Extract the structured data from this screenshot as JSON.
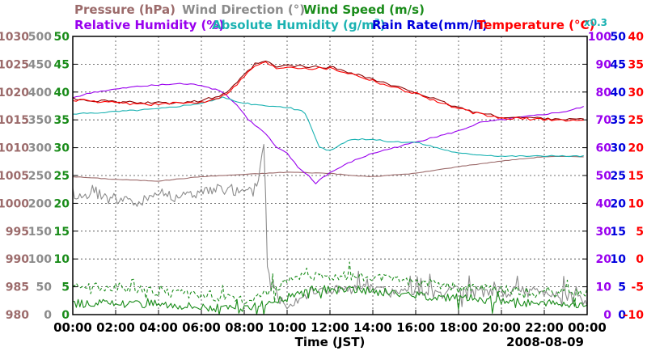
{
  "header": {
    "pressure": "Pressure (hPa)",
    "wind_direction": "Wind Direction (°)",
    "wind_speed": "Wind Speed (m/s)",
    "relative_humidity": "Relative Humidity (%)",
    "absolute_humidity": "Absolute Humidity (g/m",
    "absolute_humidity_sup": "3",
    "absolute_humidity_close": ")",
    "rain_rate": "Rain Rate(mm/h)",
    "temperature": "Temperature (°C)",
    "scale_note": "x0.3"
  },
  "footer": {
    "xlabel": "Time (JST)",
    "date": "2008-08-09"
  },
  "colors": {
    "pressure": "#9c6b6b",
    "wind_direction": "#8c8c8c",
    "wind_speed": "#1a8c1a",
    "relative_humidity": "#9900ee",
    "absolute_humidity": "#1ab2b2",
    "rain_rate": "#0000dd",
    "temperature": "#ff0000",
    "temperature_dark": "#880000",
    "grid": "#444444"
  },
  "chart_data": {
    "type": "line",
    "grid": true,
    "xlim_hours": [
      0,
      24
    ],
    "x_ticks": [
      "00:00",
      "02:00",
      "04:00",
      "06:00",
      "08:00",
      "10:00",
      "12:00",
      "14:00",
      "16:00",
      "18:00",
      "20:00",
      "22:00",
      "00:00"
    ],
    "axes": {
      "pressure": {
        "side": "left",
        "range": [
          980,
          1030
        ],
        "ticks": [
          "980",
          "985",
          "990",
          "995",
          "1000",
          "1005",
          "1010",
          "1015",
          "1020",
          "1025",
          "1030"
        ]
      },
      "wind_direction": {
        "side": "left",
        "range": [
          0,
          500
        ],
        "ticks": [
          "0",
          "50",
          "100",
          "150",
          "200",
          "250",
          "300",
          "350",
          "400",
          "450",
          "500"
        ]
      },
      "wind_speed": {
        "side": "left",
        "range": [
          0,
          50
        ],
        "ticks": [
          "0",
          "5",
          "10",
          "15",
          "20",
          "25",
          "30",
          "35",
          "40",
          "45",
          "50"
        ]
      },
      "relative_humidity": {
        "side": "right",
        "range": [
          0,
          100
        ],
        "ticks": [
          "0",
          "10",
          "20",
          "30",
          "40",
          "50",
          "60",
          "70",
          "80",
          "90",
          "100"
        ]
      },
      "rain_rate": {
        "side": "right",
        "range": [
          0,
          50
        ],
        "ticks": [
          "0",
          "5",
          "10",
          "15",
          "20",
          "25",
          "30",
          "35",
          "40",
          "45",
          "50"
        ]
      },
      "temperature": {
        "side": "right",
        "range": [
          -10,
          40
        ],
        "ticks": [
          "-10",
          "-5",
          "0",
          "5",
          "10",
          "15",
          "20",
          "25",
          "30",
          "35",
          "40"
        ]
      }
    },
    "series": [
      {
        "name": "Pressure (hPa)",
        "axis": "pressure",
        "points": [
          [
            0,
            1004.8
          ],
          [
            2,
            1004.3
          ],
          [
            4,
            1004.0
          ],
          [
            5,
            1004.4
          ],
          [
            6,
            1004.8
          ],
          [
            8,
            1005.2
          ],
          [
            10,
            1005.6
          ],
          [
            12,
            1005.4
          ],
          [
            13,
            1005.0
          ],
          [
            14,
            1004.8
          ],
          [
            16,
            1005.4
          ],
          [
            18,
            1006.6
          ],
          [
            20,
            1007.6
          ],
          [
            22,
            1008.4
          ],
          [
            24,
            1008.4
          ]
        ]
      },
      {
        "name": "Wind Direction (°)",
        "axis": "wind_direction",
        "noisy": true,
        "points": [
          [
            0,
            220
          ],
          [
            0.5,
            210
          ],
          [
            1,
            220
          ],
          [
            2,
            210
          ],
          [
            3,
            200
          ],
          [
            4,
            220
          ],
          [
            5,
            210
          ],
          [
            6,
            220
          ],
          [
            7,
            225
          ],
          [
            7.8,
            220
          ],
          [
            8.4,
            220
          ],
          [
            8.7,
            250
          ],
          [
            8.9,
            320
          ],
          [
            9.0,
            200
          ],
          [
            9.05,
            100
          ],
          [
            9.2,
            70
          ],
          [
            9.6,
            30
          ],
          [
            10,
            20
          ],
          [
            11,
            40
          ],
          [
            12,
            45
          ],
          [
            14,
            45
          ],
          [
            15,
            40
          ],
          [
            16,
            40
          ],
          [
            18,
            40
          ],
          [
            20,
            40
          ],
          [
            22,
            40
          ],
          [
            23,
            35
          ],
          [
            24,
            20
          ]
        ]
      },
      {
        "name": "Wind Speed (m/s) avg",
        "axis": "wind_speed",
        "noisy": true,
        "points": [
          [
            0,
            2
          ],
          [
            2,
            2
          ],
          [
            4,
            2
          ],
          [
            6,
            1.5
          ],
          [
            7,
            1
          ],
          [
            8,
            1
          ],
          [
            9,
            2
          ],
          [
            10,
            3
          ],
          [
            11,
            4.5
          ],
          [
            13,
            4.5
          ],
          [
            16,
            3.5
          ],
          [
            18,
            3
          ],
          [
            20,
            2.5
          ],
          [
            22,
            2
          ],
          [
            24,
            2
          ]
        ]
      },
      {
        "name": "Wind Speed (m/s) max",
        "axis": "wind_speed",
        "dashed": true,
        "noisy": true,
        "points": [
          [
            0,
            5
          ],
          [
            2,
            5
          ],
          [
            4,
            4
          ],
          [
            6,
            3.5
          ],
          [
            7,
            3
          ],
          [
            8,
            2.5
          ],
          [
            9,
            4
          ],
          [
            10,
            6
          ],
          [
            11,
            7
          ],
          [
            13,
            7
          ],
          [
            16,
            6
          ],
          [
            18,
            5
          ],
          [
            20,
            4.5
          ],
          [
            22,
            4
          ],
          [
            24,
            4
          ]
        ]
      },
      {
        "name": "Relative Humidity (%)",
        "axis": "relative_humidity",
        "points": [
          [
            0,
            78
          ],
          [
            1,
            80
          ],
          [
            3,
            82
          ],
          [
            5,
            83
          ],
          [
            6,
            82.5
          ],
          [
            7,
            80
          ],
          [
            7.7,
            75
          ],
          [
            8.2,
            70
          ],
          [
            9,
            65
          ],
          [
            9.5,
            60
          ],
          [
            10,
            58
          ],
          [
            10.5,
            53
          ],
          [
            11,
            50
          ],
          [
            11.3,
            47
          ],
          [
            11.6,
            49
          ],
          [
            12,
            51
          ],
          [
            13,
            55
          ],
          [
            14,
            58
          ],
          [
            15,
            60
          ],
          [
            16,
            62
          ],
          [
            17,
            64
          ],
          [
            18,
            66
          ],
          [
            19,
            69
          ],
          [
            20,
            70
          ],
          [
            22,
            72
          ],
          [
            23,
            73
          ],
          [
            24,
            75
          ]
        ]
      },
      {
        "name": "Absolute Humidity (g/m3)",
        "axis": "relative_humidity",
        "points": [
          [
            0,
            72
          ],
          [
            1,
            72.5
          ],
          [
            2,
            73
          ],
          [
            4,
            74
          ],
          [
            6,
            76
          ],
          [
            7,
            78
          ],
          [
            8,
            76
          ],
          [
            9,
            75
          ],
          [
            10,
            74.5
          ],
          [
            10.8,
            73
          ],
          [
            11.1,
            68
          ],
          [
            11.5,
            60
          ],
          [
            12,
            59
          ],
          [
            12.5,
            61
          ],
          [
            13,
            63
          ],
          [
            14,
            63
          ],
          [
            15,
            62
          ],
          [
            16,
            62
          ],
          [
            17,
            60
          ],
          [
            18,
            58
          ],
          [
            20,
            57
          ],
          [
            22,
            57
          ],
          [
            24,
            57
          ]
        ]
      },
      {
        "name": "Temperature (°C) dark",
        "axis": "temperature",
        "points": [
          [
            0,
            28.8
          ],
          [
            2,
            28.2
          ],
          [
            4,
            28.0
          ],
          [
            6,
            28.4
          ],
          [
            7,
            29.5
          ],
          [
            7.5,
            31
          ],
          [
            8,
            33
          ],
          [
            8.5,
            35
          ],
          [
            9,
            35.5
          ],
          [
            9.5,
            34.5
          ],
          [
            10,
            34.8
          ],
          [
            11,
            34.5
          ],
          [
            12,
            34.5
          ],
          [
            13,
            33.5
          ],
          [
            14,
            32.3
          ],
          [
            15,
            31
          ],
          [
            16,
            30
          ],
          [
            17,
            28.5
          ],
          [
            18,
            27.2
          ],
          [
            19,
            26.2
          ],
          [
            20,
            25.5
          ],
          [
            22,
            25.3
          ],
          [
            24,
            25.0
          ]
        ]
      },
      {
        "name": "Temperature (°C)",
        "axis": "temperature",
        "points": [
          [
            0,
            28.6
          ],
          [
            2,
            28.0
          ],
          [
            4,
            27.8
          ],
          [
            6,
            28.2
          ],
          [
            7,
            29.3
          ],
          [
            7.5,
            30.8
          ],
          [
            8,
            32.8
          ],
          [
            8.5,
            34.8
          ],
          [
            9,
            35.3
          ],
          [
            9.5,
            34.3
          ],
          [
            10,
            34.6
          ],
          [
            11,
            34.3
          ],
          [
            12,
            34.3
          ],
          [
            13,
            33.3
          ],
          [
            14,
            32.1
          ],
          [
            15,
            30.8
          ],
          [
            16,
            29.8
          ],
          [
            17,
            28.3
          ],
          [
            18,
            27
          ],
          [
            19,
            26
          ],
          [
            20,
            25.3
          ],
          [
            22,
            25.1
          ],
          [
            24,
            24.8
          ]
        ]
      }
    ]
  }
}
